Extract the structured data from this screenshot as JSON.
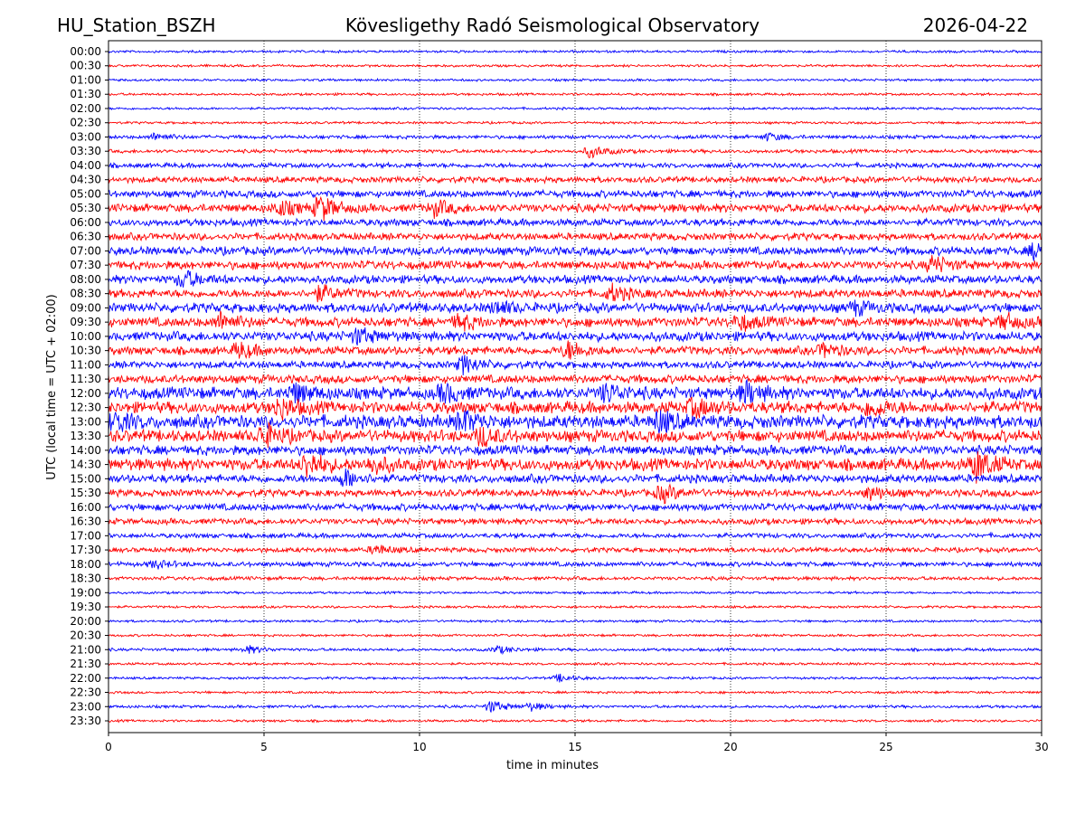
{
  "chart_data": {
    "type": "line",
    "subtype": "helicorder",
    "title_left": "HU_Station_BSZH",
    "title": "Kövesligethy Radó Seismological Observatory",
    "title_right": "2026-04-22",
    "xlabel": "time in minutes",
    "ylabel": "UTC (local time = UTC + 02:00)",
    "xlim": [
      0,
      30
    ],
    "xticks": [
      "0",
      "5",
      "10",
      "15",
      "20",
      "25",
      "30"
    ],
    "xtick_values": [
      0,
      5,
      10,
      15,
      20,
      25,
      30
    ],
    "grid": "vertical dotted at x ticks",
    "colors": [
      "#0000ff",
      "#ff0000"
    ],
    "rows": [
      "00:00",
      "00:30",
      "01:00",
      "01:30",
      "02:00",
      "02:30",
      "03:00",
      "03:30",
      "04:00",
      "04:30",
      "05:00",
      "05:30",
      "06:00",
      "06:30",
      "07:00",
      "07:30",
      "08:00",
      "08:30",
      "09:00",
      "09:30",
      "10:00",
      "10:30",
      "11:00",
      "11:30",
      "12:00",
      "12:30",
      "13:00",
      "13:30",
      "14:00",
      "14:30",
      "15:00",
      "15:30",
      "16:00",
      "16:30",
      "17:00",
      "17:30",
      "18:00",
      "18:30",
      "19:00",
      "19:30",
      "20:00",
      "20:30",
      "21:00",
      "21:30",
      "22:00",
      "22:30",
      "23:00",
      "23:30"
    ],
    "noise_level": [
      1,
      1,
      1,
      1,
      1,
      1,
      1.5,
      1.5,
      2,
      2.5,
      3,
      3.5,
      3,
      3,
      3.5,
      3.5,
      3.5,
      3.5,
      4,
      4,
      4,
      3.5,
      3,
      3.5,
      5,
      5,
      5.5,
      5,
      4,
      5,
      3.5,
      3,
      3,
      2.5,
      2,
      2,
      2,
      1.5,
      1,
      1,
      1,
      1,
      1.2,
      1,
      1,
      1,
      1.2,
      1
    ],
    "events": [
      [
        6,
        1.5,
        3
      ],
      [
        6,
        21.2,
        3
      ],
      [
        7,
        15.5,
        5
      ],
      [
        11,
        6.8,
        10
      ],
      [
        11,
        5.5,
        6
      ],
      [
        11,
        10.5,
        6
      ],
      [
        14,
        29.8,
        7
      ],
      [
        15,
        26.5,
        7
      ],
      [
        16,
        2.4,
        7
      ],
      [
        17,
        6.8,
        6
      ],
      [
        17,
        16.2,
        6
      ],
      [
        18,
        12.5,
        5
      ],
      [
        18,
        24,
        5
      ],
      [
        19,
        3.6,
        7
      ],
      [
        19,
        11.3,
        6
      ],
      [
        19,
        20.3,
        6
      ],
      [
        19,
        28.8,
        6
      ],
      [
        20,
        8,
        6
      ],
      [
        21,
        4.2,
        6
      ],
      [
        21,
        14.8,
        7
      ],
      [
        21,
        23,
        5
      ],
      [
        22,
        11.4,
        7
      ],
      [
        24,
        6,
        7
      ],
      [
        24,
        10.8,
        7
      ],
      [
        24,
        16,
        7
      ],
      [
        24,
        20.5,
        8
      ],
      [
        25,
        5.5,
        8
      ],
      [
        25,
        18.8,
        7
      ],
      [
        25,
        24.5,
        7
      ],
      [
        26,
        0.2,
        7
      ],
      [
        26,
        11.4,
        8
      ],
      [
        26,
        17.7,
        8
      ],
      [
        27,
        5,
        9
      ],
      [
        27,
        12,
        7
      ],
      [
        29,
        6.4,
        10
      ],
      [
        29,
        27.9,
        12
      ],
      [
        29,
        8.5,
        6
      ],
      [
        30,
        7.6,
        7
      ],
      [
        31,
        17.8,
        7
      ],
      [
        31,
        24.5,
        5
      ],
      [
        35,
        8.6,
        4
      ],
      [
        36,
        1.5,
        3
      ],
      [
        42,
        4.5,
        3
      ],
      [
        42,
        12.5,
        3
      ],
      [
        44,
        14.5,
        3
      ],
      [
        46,
        12.3,
        5
      ],
      [
        46,
        13.6,
        3
      ]
    ]
  }
}
